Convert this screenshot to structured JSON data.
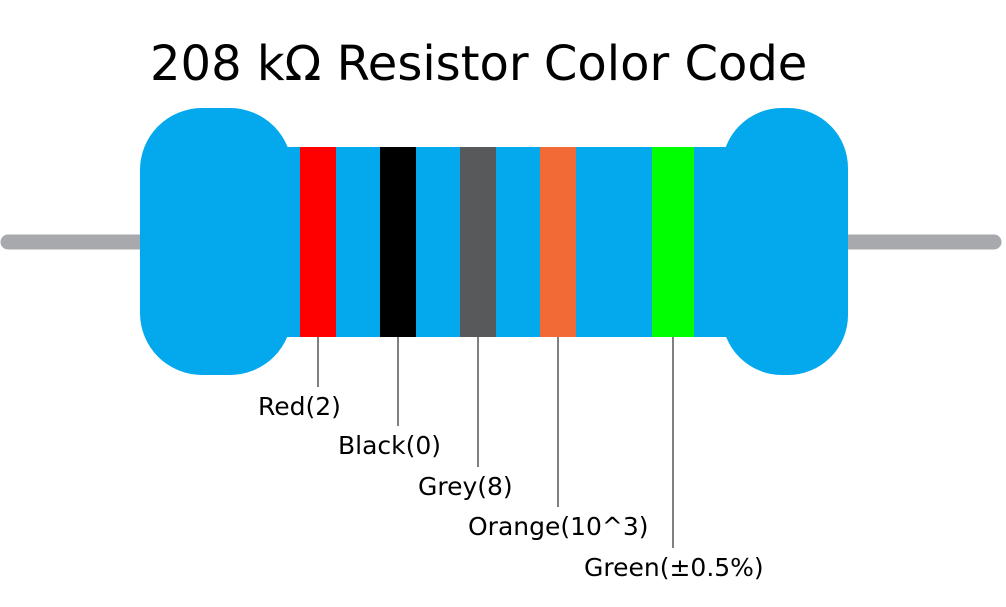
{
  "title": "208 kΩ Resistor Color Code",
  "bands": [
    {
      "label": "Red(2)",
      "color": "#ff0000"
    },
    {
      "label": "Black(0)",
      "color": "#000000"
    },
    {
      "label": "Grey(8)",
      "color": "#58595b"
    },
    {
      "label": "Orange(10^3)",
      "color": "#f26b36"
    },
    {
      "label": "Green(±0.5%)",
      "color": "#00ff00"
    }
  ]
}
